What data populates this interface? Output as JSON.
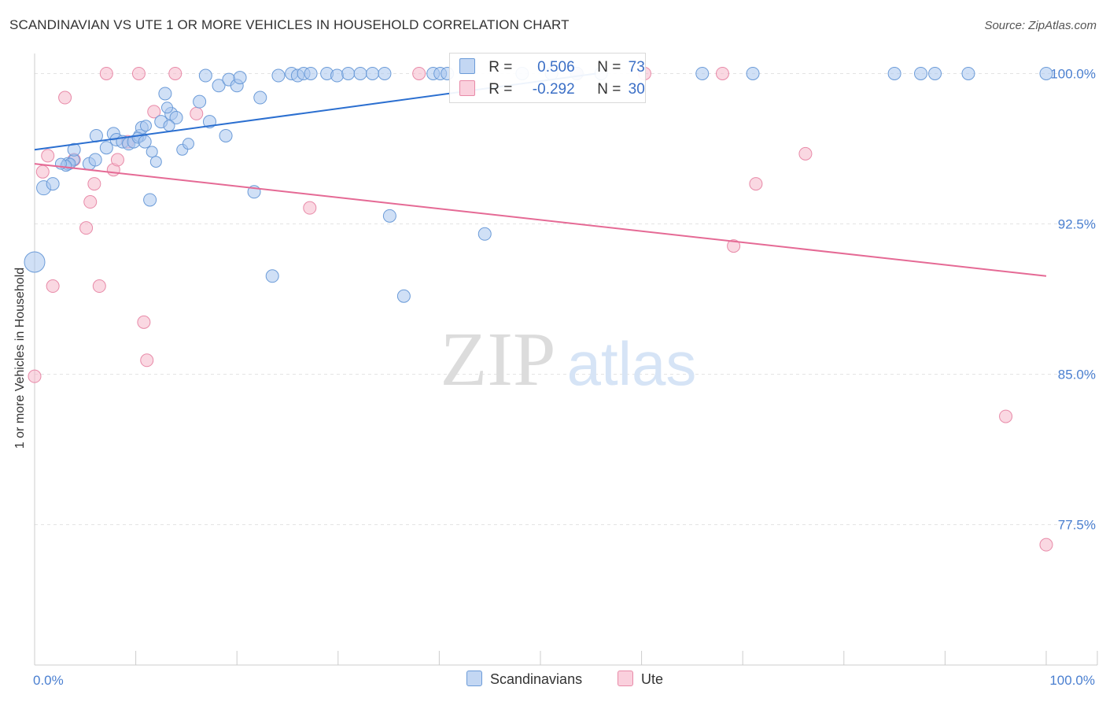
{
  "header": {
    "title": "SCANDINAVIAN VS UTE 1 OR MORE VEHICLES IN HOUSEHOLD CORRELATION CHART",
    "source": "Source: ZipAtlas.com"
  },
  "watermark": {
    "zip": "ZIP",
    "atlas": "atlas"
  },
  "legend": {
    "rows": [
      {
        "name": "Scandinavians",
        "r_label": "R =",
        "r_value": "0.506",
        "n_label": "N =",
        "n_value": "73",
        "color": "#a9c6ef"
      },
      {
        "name": "Ute",
        "r_label": "R =",
        "r_value": "-0.292",
        "n_label": "N =",
        "n_value": "30",
        "color": "#f6b8cb"
      }
    ]
  },
  "bottom_legend": [
    {
      "label": "Scandinavians",
      "color": "#a9c6ef"
    },
    {
      "label": "Ute",
      "color": "#f6b8cb"
    }
  ],
  "colors": {
    "blue_fill": "#a9c6ef",
    "blue_stroke": "#6b9bd8",
    "blue_line": "#2b6fd0",
    "pink_fill": "#f6b8cb",
    "pink_stroke": "#e88aa8",
    "pink_line": "#e56a95",
    "tick_text": "#4a7fd0",
    "grid": "#e3e3e3"
  },
  "chart_data": {
    "type": "scatter",
    "title": "SCANDINAVIAN VS UTE 1 OR MORE VEHICLES IN HOUSEHOLD CORRELATION CHART",
    "xlabel": "",
    "ylabel": "1 or more Vehicles in Household",
    "xlim": [
      0,
      100
    ],
    "ylim": [
      70.5,
      101
    ],
    "x_tick_labels": [
      {
        "value": 0,
        "label": "0.0%"
      },
      {
        "value": 100,
        "label": "100.0%"
      }
    ],
    "y_tick_labels": [
      {
        "value": 100,
        "label": "100.0%"
      },
      {
        "value": 92.5,
        "label": "92.5%"
      },
      {
        "value": 85,
        "label": "85.0%"
      },
      {
        "value": 77.5,
        "label": "77.5%"
      }
    ],
    "x_minor_ticks": [
      0,
      10,
      20,
      30,
      40,
      50,
      60,
      70,
      80,
      90,
      100
    ],
    "grid": true,
    "series": [
      {
        "name": "Scandinavians",
        "trend": {
          "x": [
            0,
            55.5
          ],
          "y": [
            96.2,
            100.0
          ]
        },
        "points": [
          [
            0,
            90.6,
            13
          ],
          [
            0.9,
            94.3,
            9
          ],
          [
            1.8,
            94.5,
            8
          ],
          [
            3.3,
            95.5,
            8
          ],
          [
            3.9,
            95.7,
            7
          ],
          [
            3.5,
            95.5,
            7
          ],
          [
            3.1,
            95.4,
            7
          ],
          [
            2.6,
            95.5,
            7
          ],
          [
            3.9,
            96.2,
            8
          ],
          [
            5.4,
            95.5,
            8
          ],
          [
            6.0,
            95.7,
            8
          ],
          [
            6.1,
            96.9,
            8
          ],
          [
            7.1,
            96.3,
            8
          ],
          [
            7.8,
            97.0,
            8
          ],
          [
            8.1,
            96.7,
            8
          ],
          [
            8.7,
            96.6,
            8
          ],
          [
            9.3,
            96.5,
            8
          ],
          [
            9.8,
            96.6,
            8
          ],
          [
            10.4,
            96.9,
            8
          ],
          [
            10.6,
            97.3,
            8
          ],
          [
            10.2,
            96.8,
            7
          ],
          [
            10.9,
            96.6,
            8
          ],
          [
            11.4,
            93.7,
            8
          ],
          [
            11.0,
            97.4,
            7
          ],
          [
            11.6,
            96.1,
            7
          ],
          [
            12.0,
            95.6,
            7
          ],
          [
            12.5,
            97.6,
            8
          ],
          [
            12.9,
            99.0,
            8
          ],
          [
            13.5,
            98.0,
            8
          ],
          [
            13.1,
            98.3,
            7
          ],
          [
            14.0,
            97.8,
            8
          ],
          [
            14.6,
            96.2,
            7
          ],
          [
            15.2,
            96.5,
            7
          ],
          [
            13.3,
            97.4,
            7
          ],
          [
            16.3,
            98.6,
            8
          ],
          [
            16.9,
            99.9,
            8
          ],
          [
            17.3,
            97.6,
            8
          ],
          [
            18.2,
            99.4,
            8
          ],
          [
            18.9,
            96.9,
            8
          ],
          [
            19.2,
            99.7,
            8
          ],
          [
            20.0,
            99.4,
            8
          ],
          [
            20.3,
            99.8,
            8
          ],
          [
            21.7,
            94.1,
            8
          ],
          [
            22.3,
            98.8,
            8
          ],
          [
            23.5,
            89.9,
            8
          ],
          [
            24.1,
            99.9,
            8
          ],
          [
            25.4,
            100.0,
            8
          ],
          [
            26.0,
            99.9,
            8
          ],
          [
            26.6,
            100.0,
            8
          ],
          [
            27.3,
            100.0,
            8
          ],
          [
            28.9,
            100.0,
            8
          ],
          [
            29.9,
            99.9,
            8
          ],
          [
            31.0,
            100.0,
            8
          ],
          [
            32.2,
            100.0,
            8
          ],
          [
            33.4,
            100.0,
            8
          ],
          [
            34.6,
            100.0,
            8
          ],
          [
            35.1,
            92.9,
            8
          ],
          [
            36.5,
            88.9,
            8
          ],
          [
            39.4,
            100.0,
            8
          ],
          [
            40.1,
            100.0,
            8
          ],
          [
            40.8,
            100.0,
            8
          ],
          [
            44.5,
            92.0,
            8
          ],
          [
            48.2,
            100.0,
            8
          ],
          [
            51.1,
            100.0,
            8
          ],
          [
            53.6,
            100.0,
            8
          ],
          [
            56.0,
            100.0,
            8
          ],
          [
            66.0,
            100.0,
            8
          ],
          [
            71.0,
            100.0,
            8
          ],
          [
            85.0,
            100.0,
            8
          ],
          [
            87.6,
            100.0,
            8
          ],
          [
            89.0,
            100.0,
            8
          ],
          [
            92.3,
            100.0,
            8
          ],
          [
            100.0,
            100.0,
            8
          ]
        ]
      },
      {
        "name": "Ute",
        "trend": {
          "x": [
            0,
            100
          ],
          "y": [
            95.5,
            89.9
          ]
        },
        "points": [
          [
            0,
            84.9,
            8
          ],
          [
            0.8,
            95.1,
            8
          ],
          [
            1.3,
            95.9,
            8
          ],
          [
            1.8,
            89.4,
            8
          ],
          [
            3.0,
            98.8,
            8
          ],
          [
            3.9,
            95.7,
            8
          ],
          [
            5.1,
            92.3,
            8
          ],
          [
            5.5,
            93.6,
            8
          ],
          [
            5.9,
            94.5,
            8
          ],
          [
            6.4,
            89.4,
            8
          ],
          [
            7.1,
            100.0,
            8
          ],
          [
            7.8,
            95.2,
            8
          ],
          [
            8.2,
            95.7,
            8
          ],
          [
            9.2,
            96.6,
            8
          ],
          [
            10.3,
            100.0,
            8
          ],
          [
            10.8,
            87.6,
            8
          ],
          [
            11.1,
            85.7,
            8
          ],
          [
            11.8,
            98.1,
            8
          ],
          [
            13.9,
            100.0,
            8
          ],
          [
            16.0,
            98.0,
            8
          ],
          [
            27.2,
            93.3,
            8
          ],
          [
            38.0,
            100.0,
            8
          ],
          [
            53.6,
            100.0,
            8
          ],
          [
            60.3,
            100.0,
            8
          ],
          [
            68.0,
            100.0,
            8
          ],
          [
            69.1,
            91.4,
            8
          ],
          [
            71.3,
            94.5,
            8
          ],
          [
            76.2,
            96.0,
            8
          ],
          [
            96.0,
            82.9,
            8
          ],
          [
            100.0,
            76.5,
            8
          ]
        ]
      }
    ]
  }
}
